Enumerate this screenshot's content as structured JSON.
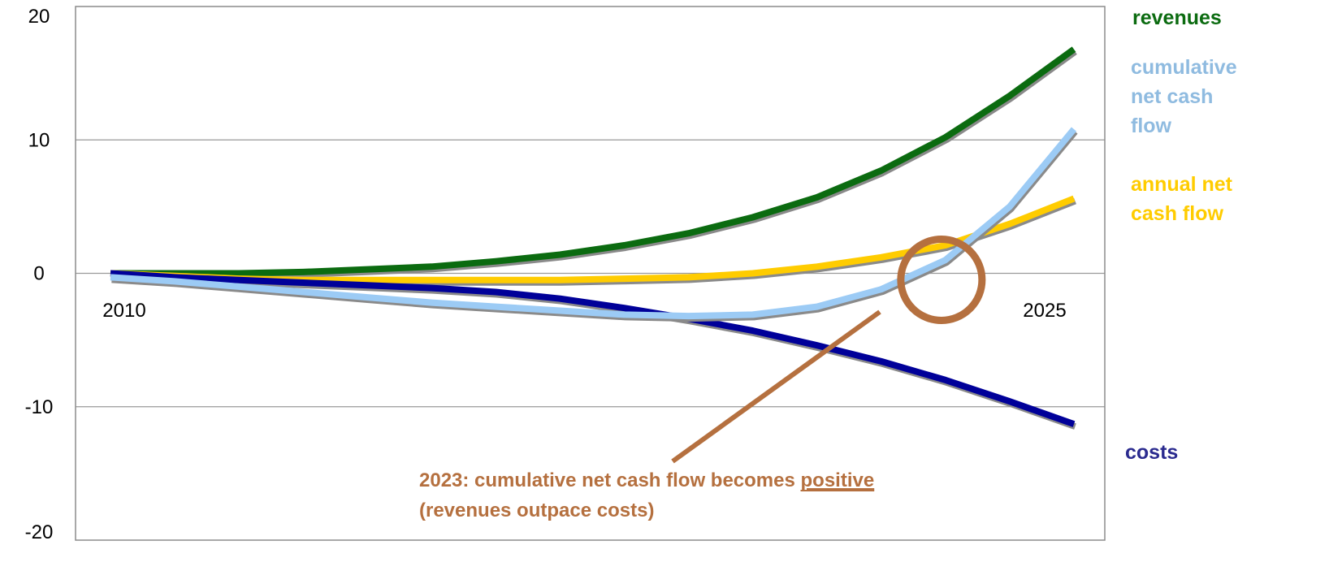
{
  "chart_data": {
    "type": "line",
    "x": [
      2010,
      2011,
      2012,
      2013,
      2014,
      2015,
      2016,
      2017,
      2018,
      2019,
      2020,
      2021,
      2022,
      2023,
      2024,
      2025
    ],
    "x_tick_labels": [
      "2010",
      "2025"
    ],
    "ylim": [
      -20,
      20
    ],
    "y_ticks": [
      20,
      10,
      0,
      -10,
      -20
    ],
    "y_tick_labels": [
      "20",
      "10",
      "0",
      "-10",
      "-20"
    ],
    "grid": "horizontal",
    "series": [
      {
        "name": "revenues",
        "color": "#0b6b10",
        "values": [
          0,
          0,
          0,
          0.1,
          0.3,
          0.5,
          0.9,
          1.4,
          2.1,
          3.0,
          4.2,
          5.7,
          7.7,
          10.2,
          13.3,
          16.8
        ]
      },
      {
        "name": "cumulative net cash flow",
        "color": "#9ccbf5",
        "values": [
          -0.3,
          -0.6,
          -1.0,
          -1.4,
          -1.8,
          -2.2,
          -2.5,
          -2.8,
          -3.1,
          -3.2,
          -3.1,
          -2.5,
          -1.2,
          1.0,
          5.0,
          10.8
        ]
      },
      {
        "name": "annual net cash flow",
        "color": "#ffcc00",
        "values": [
          0,
          -0.2,
          -0.4,
          -0.5,
          -0.5,
          -0.5,
          -0.5,
          -0.5,
          -0.4,
          -0.3,
          0,
          0.5,
          1.2,
          2.1,
          3.7,
          5.6
        ]
      },
      {
        "name": "costs",
        "color": "#000099",
        "values": [
          0,
          -0.3,
          -0.5,
          -0.7,
          -0.9,
          -1.1,
          -1.4,
          -1.9,
          -2.6,
          -3.4,
          -4.3,
          -5.4,
          -6.6,
          -8.0,
          -9.6,
          -11.3
        ]
      }
    ],
    "series_labels": [
      {
        "lines": [
          "revenues"
        ],
        "color": "#0b6b10"
      },
      {
        "lines": [
          "cumulative",
          "net cash",
          "flow"
        ],
        "color": "#8fbbe0"
      },
      {
        "lines": [
          "annual net",
          "cash flow"
        ],
        "color": "#ffcc00"
      },
      {
        "lines": [
          "costs"
        ],
        "color": "#2b2b8f"
      }
    ],
    "annotation": {
      "line1_prefix": "2023: cumulative net cash flow becomes ",
      "line1_emphasis": "positive",
      "line2": "(revenues outpace costs)",
      "color": "#b5703f",
      "marker_year": 2023,
      "marker_value": 0
    }
  }
}
